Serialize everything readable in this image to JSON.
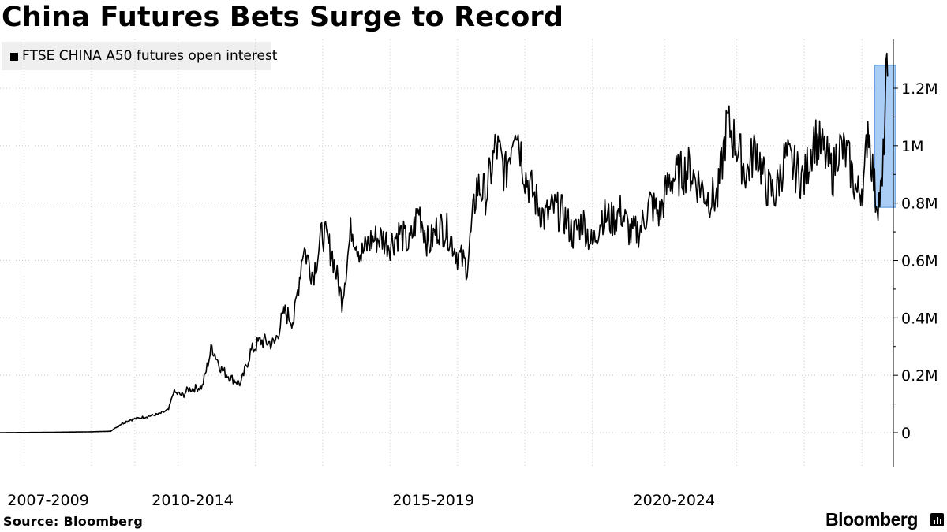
{
  "title": "China Futures Bets Surge to Record",
  "legend": {
    "label": "FTSE CHINA A50 futures open interest",
    "color": "#000000"
  },
  "source": "Source: Bloomberg",
  "brand": "Bloomberg",
  "highlight_color": "#a9cdf5",
  "chart_data": {
    "type": "line",
    "title": "China Futures Bets Surge to Record",
    "xlabel": "",
    "ylabel": "",
    "ylim": [
      -120000,
      1350000
    ],
    "xlim": [
      2006.6,
      2025.15
    ],
    "grid": true,
    "legend_position": "top-left",
    "y_ticks": [
      0,
      200000,
      400000,
      600000,
      800000,
      1000000,
      1200000
    ],
    "y_tick_labels": [
      "0",
      "0.2M",
      "0.4M",
      "0.6M",
      "0.8M",
      "1M",
      "1.2M"
    ],
    "x_tick_labels": [
      {
        "label": "2007-2009",
        "x": 2007.6
      },
      {
        "label": "2010-2014",
        "x": 2010.6
      },
      {
        "label": "2015-2019",
        "x": 2015.6
      },
      {
        "label": "2020-2024",
        "x": 2020.6
      }
    ],
    "highlight": {
      "x_start": 2024.76,
      "x_end": 2025.2,
      "y_start": 785000,
      "y_end": 1280000
    },
    "series": [
      {
        "x": [
          2006.6,
          2007.5,
          2008.0,
          2008.5,
          2008.9,
          2009.1,
          2009.3,
          2009.6,
          2009.9,
          2010.1,
          2010.2,
          2010.4,
          2010.5,
          2010.8,
          2011.0,
          2011.2,
          2011.4,
          2011.6,
          2011.8,
          2012.0,
          2012.3,
          2012.5,
          2012.7,
          2012.9,
          2013.1,
          2013.3,
          2013.5,
          2013.7,
          2013.9,
          2014.1,
          2014.3,
          2014.5,
          2014.7,
          2014.9,
          2015.1,
          2015.3,
          2015.5,
          2015.7,
          2015.9,
          2016.1,
          2016.3,
          2016.5,
          2016.7,
          2016.9,
          2017.1,
          2017.3,
          2017.5,
          2017.7,
          2017.9,
          2018.1,
          2018.3,
          2018.5,
          2018.7,
          2018.9,
          2019.1,
          2019.3,
          2019.5,
          2019.7,
          2019.9,
          2020.1,
          2020.3,
          2020.5,
          2020.7,
          2020.9,
          2021.1,
          2021.3,
          2021.5,
          2021.7,
          2021.9,
          2022.1,
          2022.3,
          2022.5,
          2022.7,
          2022.9,
          2023.1,
          2023.3,
          2023.5,
          2023.7,
          2023.9,
          2024.0,
          2024.2,
          2024.4,
          2024.55,
          2024.62,
          2024.7,
          2024.78,
          2024.85,
          2024.92,
          2025.0,
          2025.03
        ],
        "values": [
          0,
          1000,
          2000,
          3000,
          5000,
          30000,
          45000,
          55000,
          65000,
          80000,
          140000,
          130000,
          150000,
          160000,
          300000,
          220000,
          190000,
          170000,
          280000,
          320000,
          310000,
          420000,
          390000,
          650000,
          550000,
          700000,
          620000,
          460000,
          720000,
          620000,
          670000,
          680000,
          660000,
          700000,
          650000,
          780000,
          650000,
          720000,
          700000,
          620000,
          580000,
          860000,
          830000,
          1000000,
          900000,
          1100000,
          900000,
          820000,
          750000,
          780000,
          760000,
          690000,
          740000,
          650000,
          760000,
          740000,
          770000,
          690000,
          710000,
          800000,
          760000,
          880000,
          900000,
          920000,
          870000,
          820000,
          820000,
          1080000,
          1000000,
          900000,
          1000000,
          860000,
          830000,
          960000,
          920000,
          880000,
          1030000,
          980000,
          900000,
          1000000,
          960000,
          830000,
          880000,
          1090000,
          950000,
          820000,
          810000,
          850000,
          1230000,
          1240000
        ]
      }
    ]
  }
}
